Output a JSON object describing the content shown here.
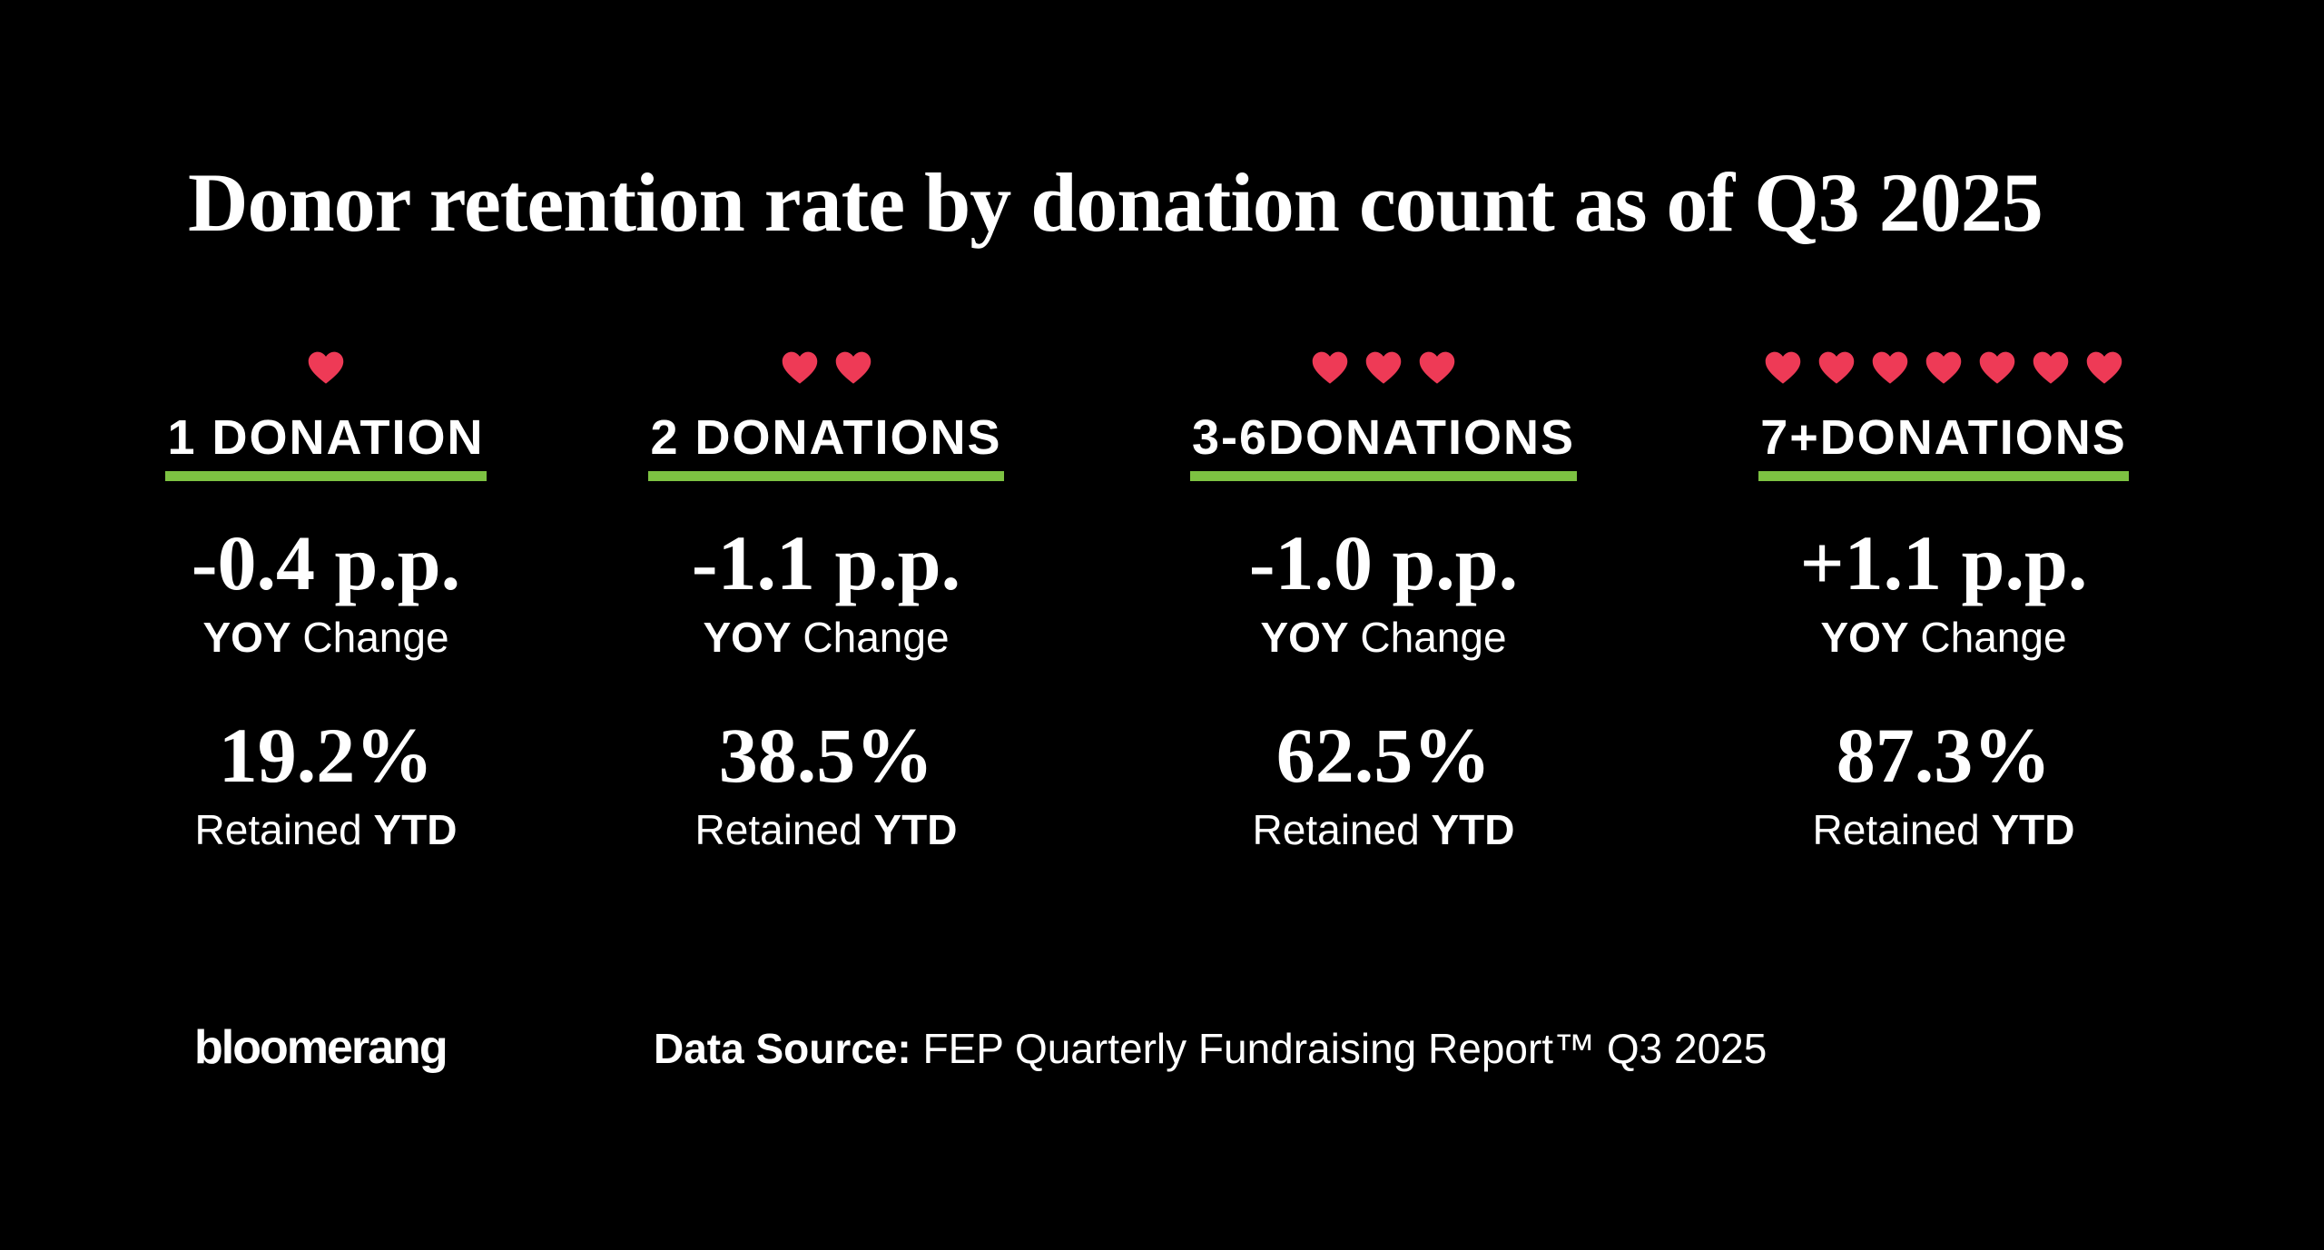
{
  "header": {
    "title": "Donor retention rate by donation count as of Q3 2025"
  },
  "columns": [
    {
      "label": "1 DONATION",
      "change": "-0.4 p.p.",
      "change_label": {
        "bold": "YOY",
        "rest": "Change"
      },
      "retained": "19.2%",
      "retained_label": {
        "rest": "Retained",
        "bold": "YTD"
      }
    },
    {
      "label": "2 DONATIONS",
      "change": "-1.1 p.p.",
      "change_label": {
        "bold": "YOY",
        "rest": "Change"
      },
      "retained": "38.5%",
      "retained_label": {
        "rest": "Retained",
        "bold": "YTD"
      }
    },
    {
      "label": "3-6DONATIONS",
      "change": "-1.0 p.p.",
      "change_label": {
        "bold": "YOY",
        "rest": "Change"
      },
      "retained": "62.5%",
      "retained_label": {
        "rest": "Retained",
        "bold": "YTD"
      }
    },
    {
      "label": "7+DONATIONS",
      "change": "+1.1 p.p.",
      "change_label": {
        "bold": "YOY",
        "rest": "Change"
      },
      "retained": "87.3%",
      "retained_label": {
        "rest": "Retained",
        "bold": "YTD"
      }
    }
  ],
  "footer": {
    "logo": "bloomerang",
    "source_label": "Data Source:",
    "source": "FEP Quarterly Fundraising Report™ Q3 2025"
  }
}
